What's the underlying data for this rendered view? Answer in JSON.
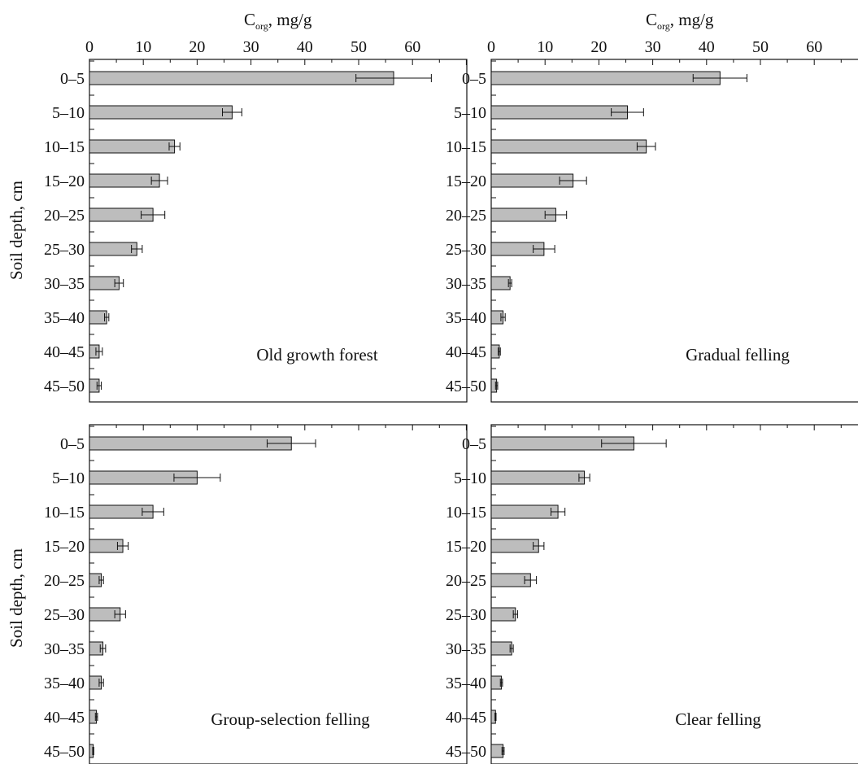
{
  "axis": {
    "xlabel_main": "C",
    "xlabel_sub": "org",
    "xlabel_rest": ", mg/g",
    "ylabel": "Soil depth, cm",
    "xticks": [
      "0",
      "10",
      "20",
      "30",
      "40",
      "50",
      "60"
    ]
  },
  "chart_data": {
    "type": "bar",
    "orientation": "horizontal",
    "categories": [
      "0–5",
      "5–10",
      "10–15",
      "15–20",
      "20–25",
      "25–30",
      "30–35",
      "35–40",
      "40–45",
      "45–50"
    ],
    "xlim": [
      0,
      70
    ],
    "series": [
      {
        "name": "Old growth forest",
        "values": [
          56.5,
          26.5,
          15.8,
          13.0,
          11.8,
          8.8,
          5.5,
          3.2,
          1.8,
          1.8
        ],
        "errors": [
          7.0,
          1.8,
          1.0,
          1.5,
          2.2,
          1.0,
          0.8,
          0.4,
          0.6,
          0.4
        ]
      },
      {
        "name": "Gradual felling",
        "values": [
          42.5,
          25.3,
          28.8,
          15.2,
          12.0,
          9.8,
          3.5,
          2.2,
          1.5,
          1.0
        ],
        "errors": [
          5.0,
          3.0,
          1.7,
          2.5,
          2.0,
          2.0,
          0.3,
          0.4,
          0.2,
          0.2
        ]
      },
      {
        "name": "Group-selection felling",
        "values": [
          37.5,
          20.0,
          11.8,
          6.2,
          2.2,
          5.7,
          2.5,
          2.2,
          1.3,
          0.7
        ],
        "errors": [
          4.5,
          4.3,
          2.0,
          1.0,
          0.4,
          1.0,
          0.5,
          0.4,
          0.2,
          0.1
        ]
      },
      {
        "name": "Clear felling",
        "values": [
          26.5,
          17.3,
          12.4,
          8.8,
          7.3,
          4.5,
          3.8,
          1.9,
          0.8,
          2.2
        ],
        "errors": [
          6.0,
          1.0,
          1.3,
          1.0,
          1.1,
          0.4,
          0.3,
          0.2,
          0.1,
          0.2
        ]
      }
    ]
  }
}
